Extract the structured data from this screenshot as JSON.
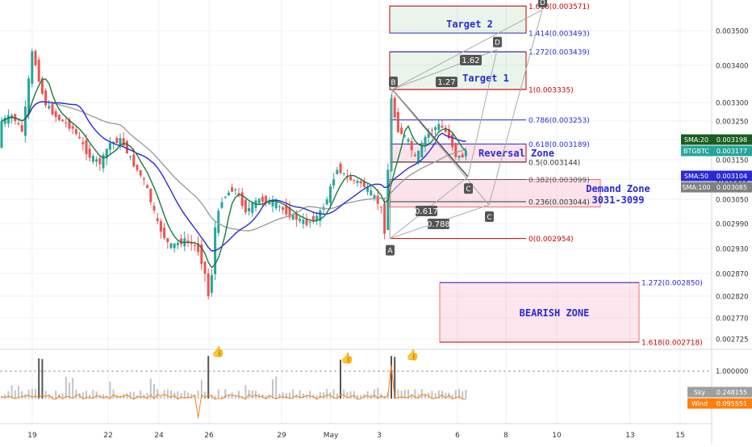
{
  "chart_data": {
    "type": "candlestick",
    "symbol": "BTGBTC",
    "price_axis": {
      "ticks": [
        "0.003500",
        "0.003400",
        "0.003300",
        "0.003250",
        "0.003200",
        "0.003150",
        "0.003100",
        "0.003050",
        "0.002990",
        "0.002930",
        "0.002870",
        "0.002820",
        "0.002770",
        "0.002725"
      ],
      "range": [
        0.00271,
        0.00356
      ]
    },
    "volume_axis": {
      "ticks": [
        "1.000000"
      ]
    },
    "x_axis": {
      "ticks": [
        "19",
        "22",
        "24",
        "26",
        "29",
        "May",
        "3",
        "6",
        "8",
        "10",
        "13",
        "15"
      ]
    },
    "badges": [
      {
        "name": "sma20",
        "label": "SMA:20",
        "value": "0.003198",
        "color": "#1b5e20",
        "price": 0.003198
      },
      {
        "name": "btgbtc",
        "label": "BTGBTC",
        "value": "0.003177",
        "color": "#26a69a",
        "price": 0.003177
      },
      {
        "name": "sma50",
        "label": "SMA:50",
        "value": "0.003104",
        "color": "#2a2ad4",
        "price": 0.003104
      },
      {
        "name": "sma100",
        "label": "SMA:100",
        "value": "0.003085",
        "color": "#808080",
        "price": 0.003085
      }
    ],
    "volume_badges": [
      {
        "name": "sky",
        "label": "Sky",
        "value": "0.248155",
        "color": "#9e9e9e"
      },
      {
        "name": "wind",
        "label": "Wind",
        "value": "0.095551",
        "color": "#ff7f0e"
      }
    ],
    "fib_levels": [
      {
        "label": "1.618(0.003571)",
        "price": 0.003571,
        "color": "#cc0000"
      },
      {
        "label": "1.414(0.003493)",
        "price": 0.003493,
        "color": "#2a2ad4"
      },
      {
        "label": "1.272(0.003439)",
        "price": 0.003439,
        "color": "#2a2ad4"
      },
      {
        "label": "1(0.003335)",
        "price": 0.003335,
        "color": "#cc0000"
      },
      {
        "label": "0.786(0.003253)",
        "price": 0.003253,
        "color": "#2a2ad4"
      },
      {
        "label": "0.618(0.003189)",
        "price": 0.003189,
        "color": "#2a2ad4"
      },
      {
        "label": "0.5(0.003144)",
        "price": 0.003144,
        "color": "#333333"
      },
      {
        "label": "0.382(0.003099)",
        "price": 0.003099,
        "color": "#555555"
      },
      {
        "label": "0.236(0.003044)",
        "price": 0.003044,
        "color": "#333333"
      },
      {
        "label": "0(0.002954)",
        "price": 0.002954,
        "color": "#cc0000"
      }
    ],
    "lower_fib_levels": [
      {
        "label": "1.272(0.002850)",
        "price": 0.00285,
        "color": "#2a2ad4"
      },
      {
        "label": "1.618(0.002718)",
        "price": 0.002718,
        "color": "#cc0000"
      }
    ],
    "zones": [
      {
        "name": "target-2-zone",
        "text": "Target 2",
        "color": "#2a2ad4"
      },
      {
        "name": "target-1-zone",
        "text": "Target 1",
        "color": "#2a2ad4"
      },
      {
        "name": "reversal-zone",
        "text": "Reversal Zone",
        "color": "#2a2ad4"
      },
      {
        "name": "demand-zone",
        "text": "Demand Zone",
        "text2": "3031-3099",
        "color": "#2a2ad4"
      },
      {
        "name": "bearish-zone",
        "text": "BEARISH ZONE",
        "color": "#2a2ad4"
      }
    ],
    "point_labels": [
      "A",
      "B",
      "C",
      "C",
      "D",
      "D"
    ],
    "ratio_labels": [
      "1.62",
      "1.27",
      "0.617",
      "0.788"
    ]
  }
}
